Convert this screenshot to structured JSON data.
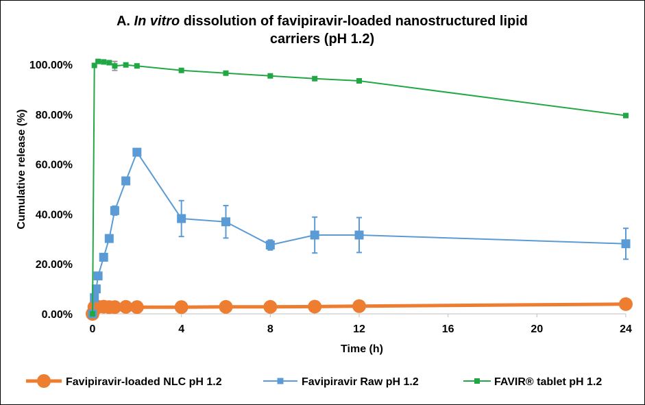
{
  "chart_data": {
    "type": "line",
    "title_prefix": "A. ",
    "title_italic": "In vitro",
    "title_line1_rest": " dissolution of favipiravir-loaded nanostructured lipid",
    "title_line2": "carriers (pH 1.2)",
    "xlabel": "Time (h)",
    "ylabel": "Cumulative release (%)",
    "xlim": [
      0,
      24
    ],
    "ylim": [
      0,
      1.0
    ],
    "x_ticks": [
      0,
      4,
      8,
      12,
      16,
      20,
      24
    ],
    "x_tick_labels": [
      "0",
      "4",
      "8",
      "12",
      "16",
      "20",
      "24"
    ],
    "y_ticks": [
      0,
      0.2,
      0.4,
      0.6,
      0.8,
      1.0
    ],
    "y_tick_labels": [
      "0.00%",
      "20.00%",
      "40.00%",
      "60.00%",
      "80.00%",
      "100.00%"
    ],
    "grid": false,
    "legend_position": "bottom",
    "series": [
      {
        "name": "Favipiravir-loaded NLC pH 1.2",
        "color": "#ED7D31",
        "marker": "circle",
        "x": [
          0,
          0.083,
          0.25,
          0.5,
          0.75,
          1,
          1.5,
          2,
          4,
          6,
          8,
          10,
          12,
          24
        ],
        "y": [
          0.0,
          0.027,
          0.028,
          0.029,
          0.027,
          0.027,
          0.028,
          0.027,
          0.027,
          0.028,
          0.028,
          0.029,
          0.031,
          0.039
        ],
        "err": [
          0,
          0,
          0,
          0,
          0,
          0,
          0,
          0,
          0,
          0,
          0,
          0,
          0,
          0
        ]
      },
      {
        "name": "Favipiravir Raw pH 1.2",
        "color": "#5B9BD5",
        "marker": "square",
        "x": [
          0,
          0.083,
          0.167,
          0.25,
          0.5,
          0.75,
          1,
          1.5,
          2,
          4,
          6,
          8,
          10,
          12,
          24
        ],
        "y": [
          0.0,
          0.065,
          0.1,
          0.152,
          0.227,
          0.302,
          0.414,
          0.533,
          0.648,
          0.382,
          0.369,
          0.276,
          0.316,
          0.316,
          0.281
        ],
        "err": [
          0,
          0,
          0,
          0,
          0.01,
          0.015,
          0.018,
          0.015,
          0.01,
          0.072,
          0.065,
          0.02,
          0.072,
          0.07,
          0.062
        ]
      },
      {
        "name": "FAVIR® tablet pH 1.2",
        "color": "#21A845",
        "marker": "square",
        "x": [
          0,
          0.083,
          0.25,
          0.5,
          0.75,
          1,
          1.5,
          2,
          4,
          6,
          8,
          10,
          12,
          24
        ],
        "y": [
          0.0,
          0.996,
          1.012,
          1.01,
          1.007,
          0.994,
          0.998,
          0.994,
          0.976,
          0.965,
          0.954,
          0.943,
          0.934,
          0.795
        ],
        "err": [
          0,
          0,
          0,
          0,
          0,
          0.018,
          0,
          0,
          0,
          0,
          0,
          0,
          0,
          0
        ]
      }
    ]
  }
}
